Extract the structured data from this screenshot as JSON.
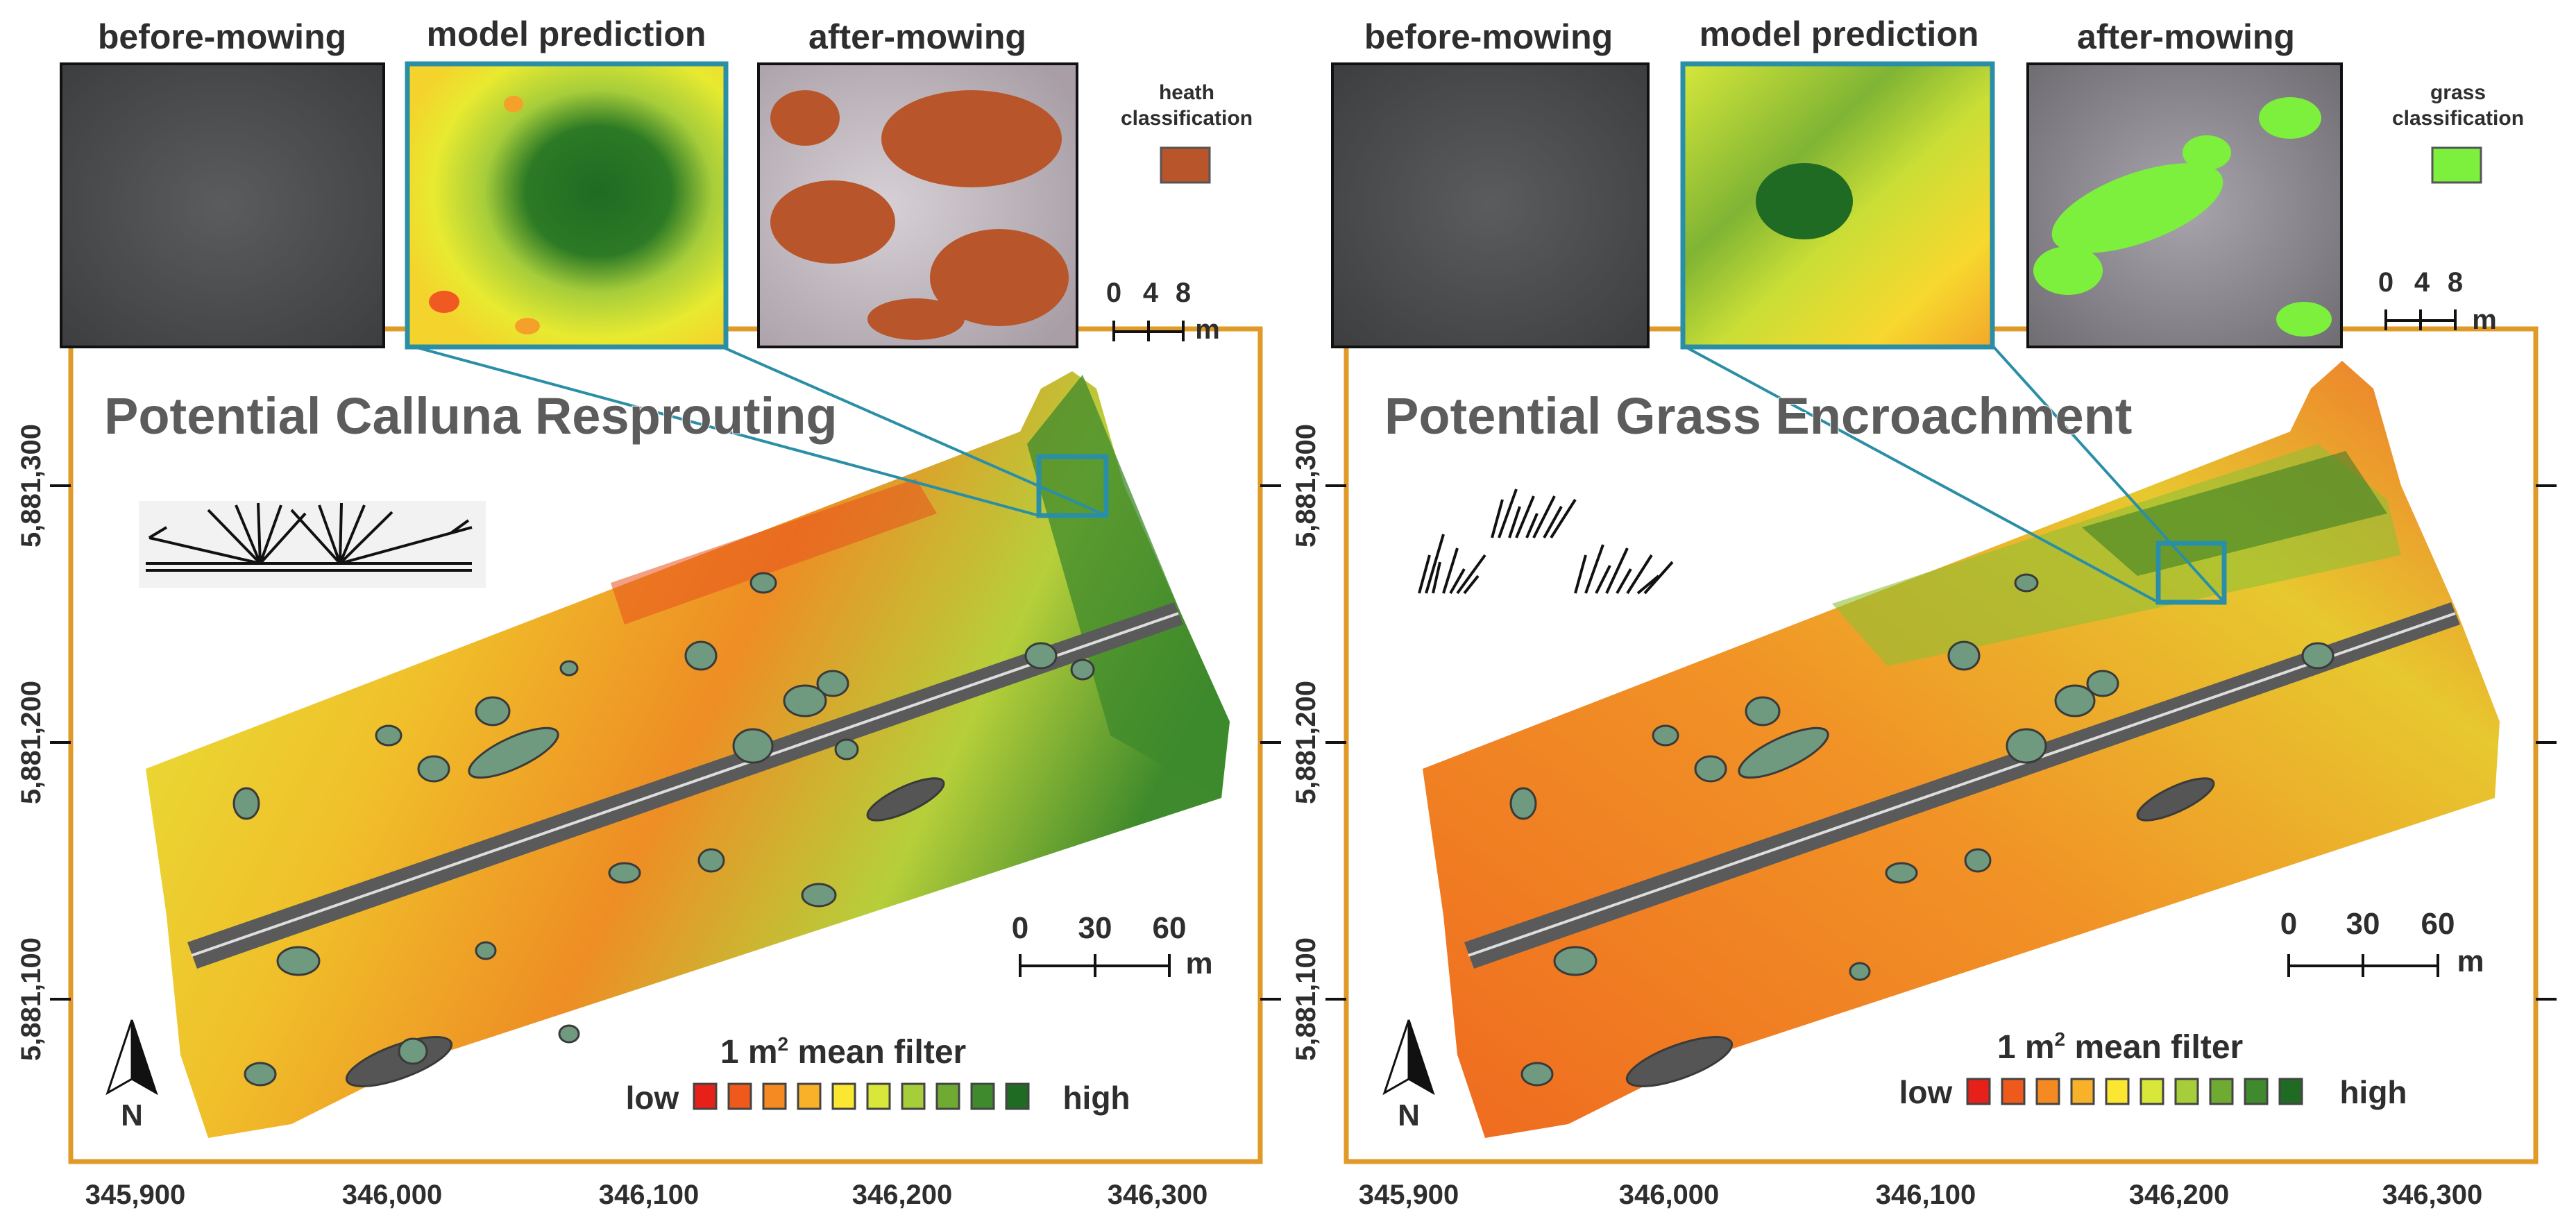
{
  "panels": [
    {
      "id": "left",
      "title": "Potential Calluna Resprouting",
      "thumbnails": {
        "before": "before-mowing",
        "prediction": "model prediction",
        "after": "after-mowing"
      },
      "classification": {
        "label_line1": "heath",
        "label_line2": "classification",
        "color": "#b8552a"
      },
      "small_scale": {
        "ticks": [
          "0",
          "4",
          "8"
        ],
        "unit": "m"
      },
      "map_scale": {
        "ticks": [
          "0",
          "30",
          "60"
        ],
        "unit": "m"
      },
      "legend": {
        "title_main": "1 m",
        "title_sup": "2",
        "title_rest": " mean filter",
        "low": "low",
        "high": "high",
        "colors": [
          "#e8201a",
          "#ef5a1c",
          "#f58a22",
          "#f9b12a",
          "#fbe632",
          "#d8e73a",
          "#a6cd3a",
          "#6fab33",
          "#3e8a2c",
          "#1f6b23"
        ]
      },
      "y_ticks": [
        "5,881,300",
        "5,881,200",
        "5,881,100"
      ],
      "x_ticks": [
        "345,900",
        "346,000",
        "346,100",
        "346,200",
        "346,300"
      ],
      "north": "N"
    },
    {
      "id": "right",
      "title": "Potential Grass Encroachment",
      "thumbnails": {
        "before": "before-mowing",
        "prediction": "model prediction",
        "after": "after-mowing"
      },
      "classification": {
        "label_line1": "grass",
        "label_line2": "classification",
        "color": "#7cf03c"
      },
      "small_scale": {
        "ticks": [
          "0",
          "4",
          "8"
        ],
        "unit": "m"
      },
      "map_scale": {
        "ticks": [
          "0",
          "30",
          "60"
        ],
        "unit": "m"
      },
      "legend": {
        "title_main": "1 m",
        "title_sup": "2",
        "title_rest": " mean filter",
        "low": "low",
        "high": "high",
        "colors": [
          "#e8201a",
          "#ef5a1c",
          "#f58a22",
          "#f9b12a",
          "#fbe632",
          "#d8e73a",
          "#a6cd3a",
          "#6fab33",
          "#3e8a2c",
          "#1f6b23"
        ]
      },
      "y_ticks": [
        "5,881,300",
        "5,881,200",
        "5,881,100"
      ],
      "x_ticks": [
        "345,900",
        "346,000",
        "346,100",
        "346,200",
        "346,300"
      ],
      "north": "N"
    }
  ],
  "colors": {
    "frame": "#e09a28",
    "inset": "#2a8fa6",
    "road": "#5a5a5a"
  }
}
